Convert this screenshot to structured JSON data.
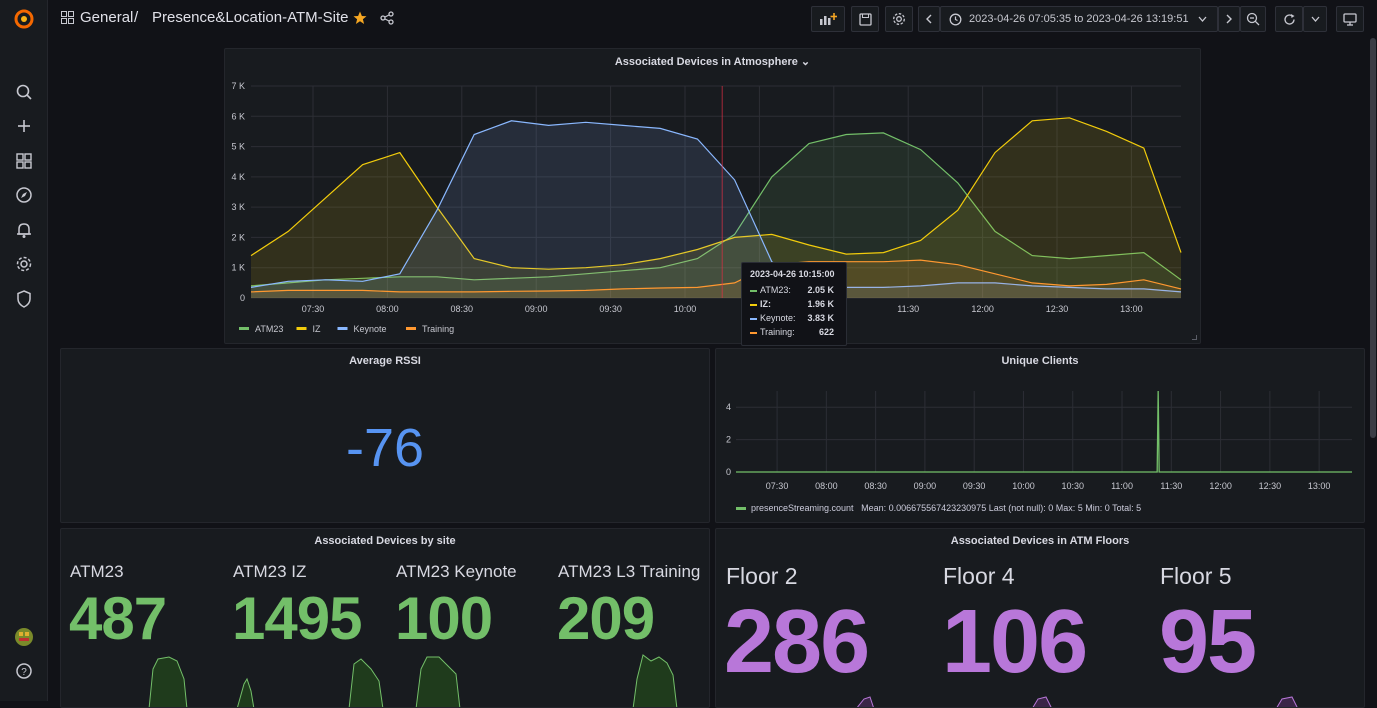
{
  "breadcrumb": {
    "folder": "General",
    "separator": "/",
    "dashboard": "Presence&Location-ATM-Site"
  },
  "time_range": "2023-04-26 07:05:35 to 2023-04-26 13:19:51",
  "colors": {
    "green": "#73bf69",
    "yellow": "#f2cc0c",
    "blue": "#8ab8ff",
    "orange": "#ff9830",
    "purple": "#b877d9",
    "accent": "#f5a623"
  },
  "icons": {
    "sidebar": [
      "grafana-logo-icon",
      "search-icon",
      "plus-icon",
      "dashboards-icon",
      "explore-icon",
      "alert-bell-icon",
      "gear-icon",
      "shield-icon",
      "user-avatar-icon",
      "help-icon"
    ],
    "toolbar": [
      "add-panel-icon",
      "save-icon",
      "settings-icon",
      "chevron-left-icon",
      "clock-icon",
      "chevron-down-icon",
      "chevron-right-icon",
      "zoom-out-icon",
      "refresh-icon",
      "chevron-down-icon",
      "tv-mode-icon"
    ]
  },
  "panels": {
    "atmosphere": {
      "title": "Associated Devices in Atmosphere",
      "chart_data": {
        "type": "area",
        "title": "Associated Devices in Atmosphere",
        "x": [
          "07:05",
          "07:20",
          "07:35",
          "07:50",
          "08:05",
          "08:20",
          "08:35",
          "08:50",
          "09:05",
          "09:20",
          "09:35",
          "09:50",
          "10:05",
          "10:20",
          "10:35",
          "10:50",
          "11:05",
          "11:20",
          "11:35",
          "11:50",
          "12:05",
          "12:20",
          "12:35",
          "12:50",
          "13:05",
          "13:20"
        ],
        "x_ticks": [
          "07:30",
          "08:00",
          "08:30",
          "09:00",
          "09:30",
          "10:00",
          "10:30",
          "11:00",
          "11:30",
          "12:00",
          "12:30",
          "13:00"
        ],
        "y_ticks": [
          "0",
          "1 K",
          "2 K",
          "3 K",
          "4 K",
          "5 K",
          "6 K",
          "7 K"
        ],
        "ylim": [
          0,
          7000
        ],
        "legend_position": "bottom-left",
        "series": [
          {
            "name": "ATM23",
            "color": "#73bf69",
            "values": [
              400,
              500,
              600,
              650,
              700,
              700,
              600,
              650,
              700,
              800,
              900,
              1000,
              1300,
              2100,
              4000,
              5100,
              5400,
              5450,
              4900,
              3800,
              2200,
              1400,
              1300,
              1400,
              1500,
              600
            ]
          },
          {
            "name": "IZ",
            "color": "#f2cc0c",
            "values": [
              1400,
              2200,
              3300,
              4400,
              4800,
              3000,
              1300,
              1000,
              950,
              1000,
              1100,
              1300,
              1600,
              2000,
              2100,
              1750,
              1450,
              1500,
              1900,
              2900,
              4800,
              5850,
              5950,
              5500,
              4950,
              1500
            ]
          },
          {
            "name": "Keynote",
            "color": "#8ab8ff",
            "values": [
              350,
              550,
              600,
              550,
              800,
              2900,
              5400,
              5850,
              5700,
              5800,
              5700,
              5600,
              5250,
              3900,
              1200,
              400,
              350,
              350,
              400,
              500,
              500,
              400,
              350,
              300,
              300,
              200
            ]
          },
          {
            "name": "Training",
            "color": "#ff9830",
            "values": [
              200,
              250,
              250,
              250,
              200,
              200,
              200,
              220,
              230,
              250,
              300,
              330,
              350,
              500,
              1100,
              1200,
              1200,
              1200,
              1250,
              1100,
              800,
              500,
              400,
              450,
              600,
              300
            ]
          }
        ]
      },
      "tooltip": {
        "time": "2023-04-26 10:15:00",
        "rows": [
          {
            "name": "ATM23:",
            "value": "2.05 K",
            "color": "#73bf69"
          },
          {
            "name": "IZ:",
            "value": "1.96 K",
            "color": "#f2cc0c"
          },
          {
            "name": "Keynote:",
            "value": "3.83 K",
            "color": "#8ab8ff"
          },
          {
            "name": "Training:",
            "value": "622",
            "color": "#ff9830"
          }
        ]
      }
    },
    "rssi": {
      "title": "Average RSSI",
      "value": "-76"
    },
    "unique_clients": {
      "title": "Unique Clients",
      "chart_data": {
        "type": "line",
        "title": "Unique Clients",
        "x_ticks": [
          "07:30",
          "08:00",
          "08:30",
          "09:00",
          "09:30",
          "10:00",
          "10:30",
          "11:00",
          "11:30",
          "12:00",
          "12:30",
          "13:00"
        ],
        "y_ticks": [
          "0",
          "2",
          "4"
        ],
        "ylim": [
          0,
          5
        ],
        "series": [
          {
            "name": "presenceStreaming.count",
            "color": "#73bf69",
            "spike_x": "11:22",
            "spike_value": 5
          }
        ]
      },
      "legend": {
        "name": "presenceStreaming.count",
        "stats": "Mean: 0.006675567423230975   Last (not null): 0   Max: 5   Min: 0   Total: 5"
      }
    },
    "by_site": {
      "title": "Associated Devices by site",
      "stats": [
        {
          "label": "ATM23",
          "value": "487"
        },
        {
          "label": "ATM23 IZ",
          "value": "1495"
        },
        {
          "label": "ATM23 Keynote",
          "value": "100"
        },
        {
          "label": "ATM23 L3 Training",
          "value": "209"
        }
      ]
    },
    "floors": {
      "title": "Associated Devices in ATM Floors",
      "stats": [
        {
          "label": "Floor 2",
          "value": "286"
        },
        {
          "label": "Floor 4",
          "value": "106"
        },
        {
          "label": "Floor 5",
          "value": "95"
        }
      ]
    }
  }
}
